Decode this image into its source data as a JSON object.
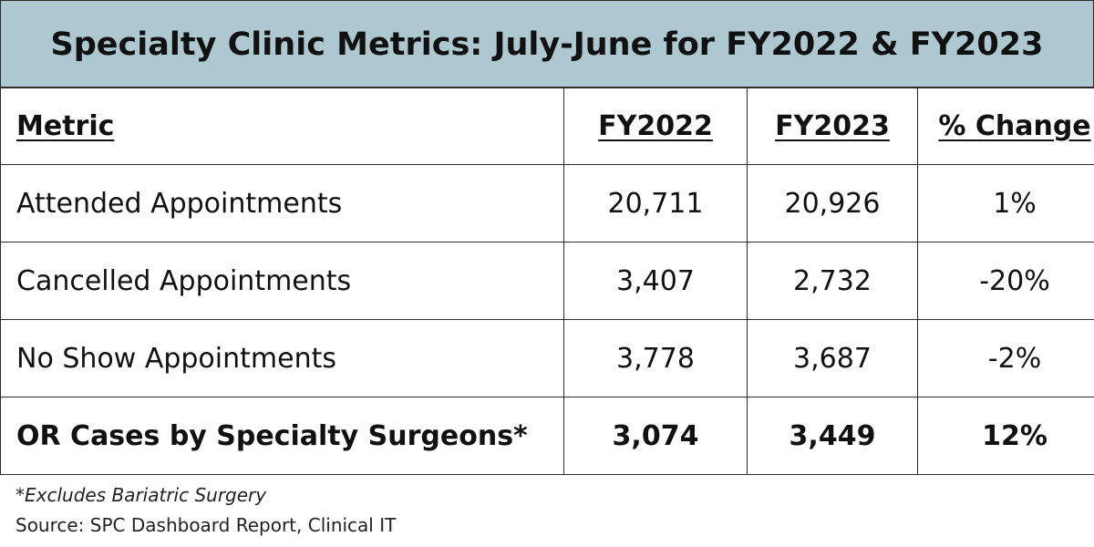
{
  "title": "Specialty Clinic Metrics: July-June for FY2022 & FY2023",
  "table": {
    "headers": {
      "metric": "Metric",
      "fy2022": "FY2022",
      "fy2023": "FY2023",
      "change": "% Change"
    },
    "rows": [
      {
        "metric": "Attended Appointments",
        "fy2022": "20,711",
        "fy2023": "20,926",
        "change": "1%"
      },
      {
        "metric": "Cancelled Appointments",
        "fy2022": "3,407",
        "fy2023": "2,732",
        "change": "-20%"
      },
      {
        "metric": "No Show Appointments",
        "fy2022": "3,778",
        "fy2023": "3,687",
        "change": "-2%"
      },
      {
        "metric": "OR Cases by Specialty Surgeons*",
        "fy2022": "3,074",
        "fy2023": "3,449",
        "change": "12%"
      }
    ]
  },
  "footnote": "*Excludes Bariatric Surgery",
  "source": "Source: SPC Dashboard Report, Clinical IT",
  "colors": {
    "title_background": "#adc8d0",
    "border": "#2b2b2b",
    "text": "#111111"
  }
}
